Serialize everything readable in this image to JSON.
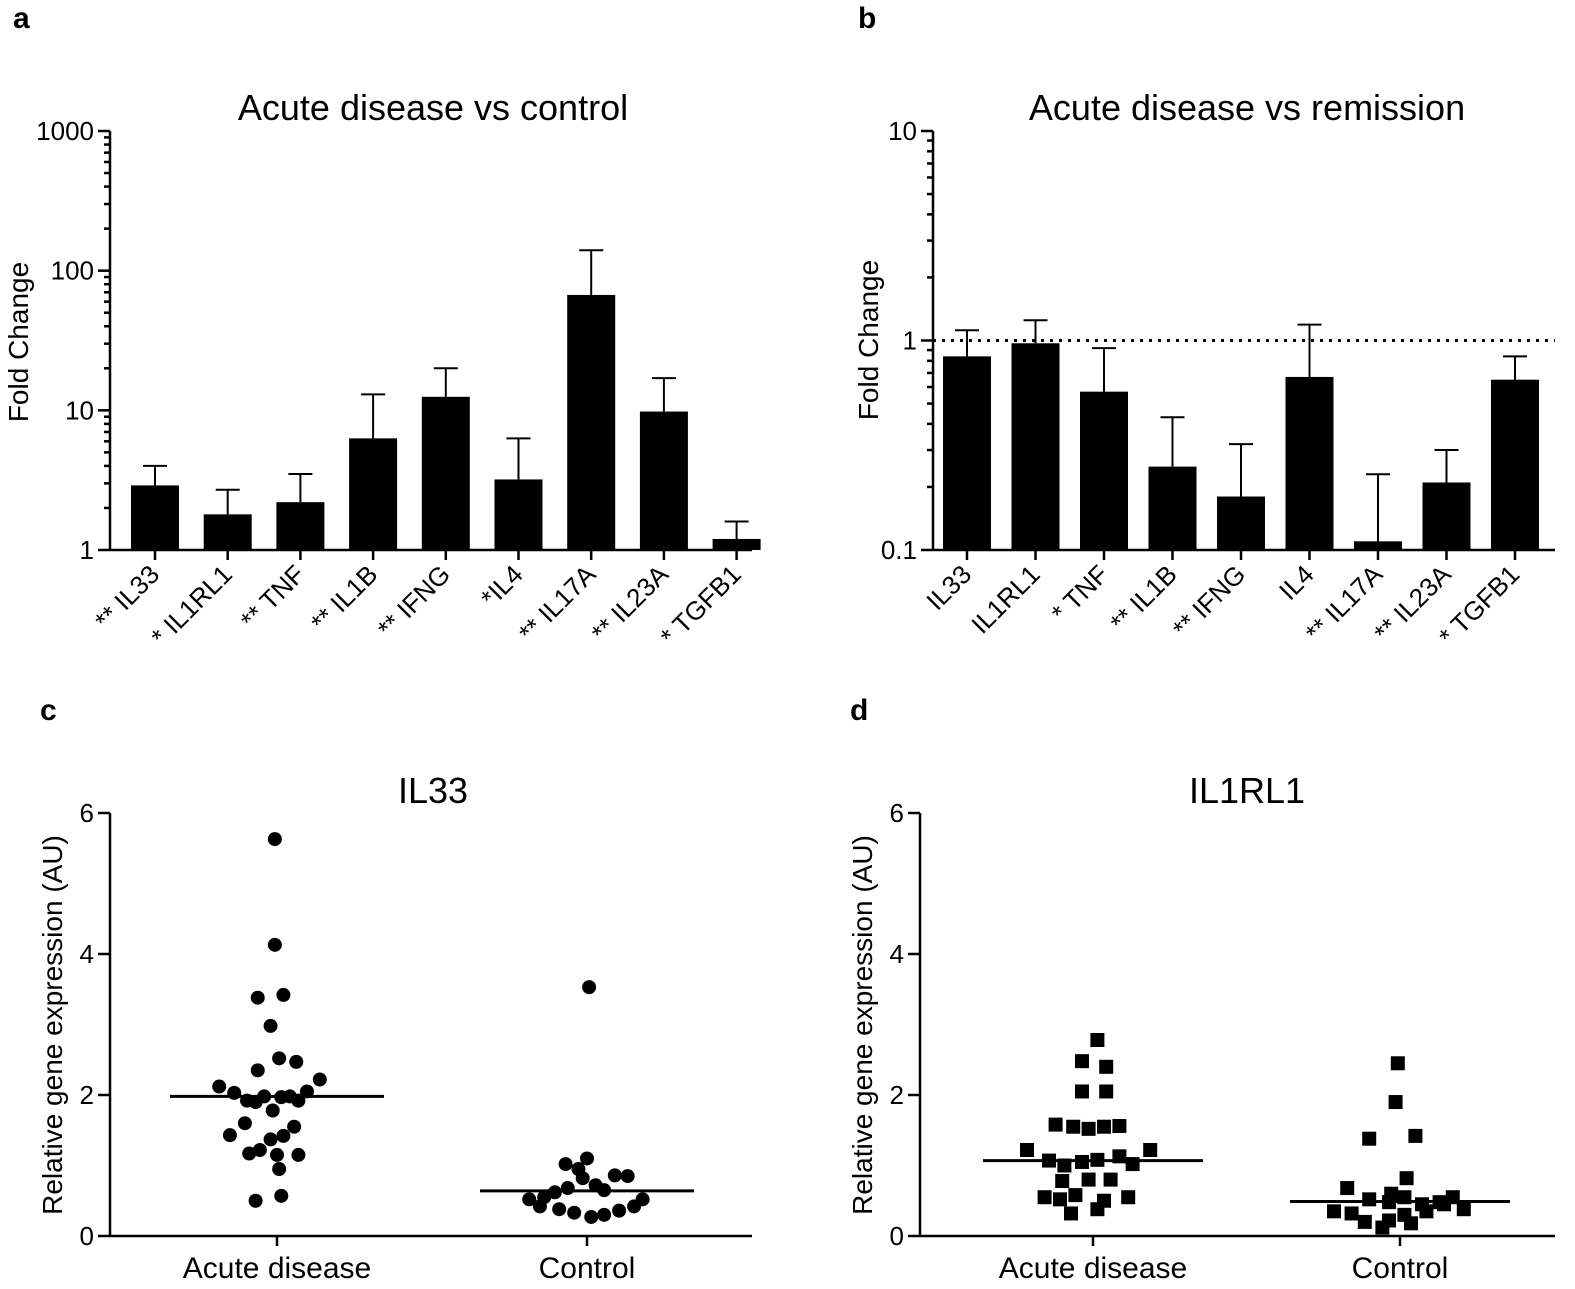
{
  "chart_data": [
    {
      "panel": "a",
      "type": "bar",
      "title": "Acute disease vs control",
      "ylabel": "Fold Change",
      "yscale": "log",
      "ylim": [
        1,
        1000
      ],
      "yticks": [
        1,
        10,
        100,
        1000
      ],
      "ytick_labels": [
        "1",
        "10",
        "100",
        "1000"
      ],
      "categories": [
        "** IL33",
        "* IL1RL1",
        "** TNF",
        "** IL1B",
        "** IFNG",
        "*IL4",
        "** IL17A",
        "** IL23A",
        "* TGFB1"
      ],
      "values": [
        2.9,
        1.8,
        2.2,
        6.3,
        12.5,
        3.2,
        67,
        9.8,
        1.2
      ],
      "error_upper": [
        4.0,
        2.7,
        3.5,
        13,
        20,
        6.3,
        140,
        17,
        1.6
      ],
      "color": "#000000"
    },
    {
      "panel": "b",
      "type": "bar",
      "title": "Acute disease vs remission",
      "ylabel": "Fold Change",
      "yscale": "log",
      "ylim": [
        0.1,
        10
      ],
      "yticks": [
        0.1,
        1,
        10
      ],
      "ytick_labels": [
        "0.1",
        "1",
        "10"
      ],
      "reference_line": 1,
      "categories": [
        "IL33",
        "IL1RL1",
        "* TNF",
        "** IL1B",
        "** IFNG",
        "IL4",
        "** IL17A",
        "** IL23A",
        "* TGFB1"
      ],
      "values": [
        0.84,
        0.97,
        0.57,
        0.25,
        0.18,
        0.67,
        0.11,
        0.21,
        0.65
      ],
      "error_upper": [
        1.12,
        1.25,
        0.92,
        0.43,
        0.32,
        1.19,
        0.23,
        0.3,
        0.84
      ],
      "color": "#000000"
    },
    {
      "panel": "c",
      "type": "scatter",
      "title": "IL33",
      "ylabel": "Relative gene expression (AU)",
      "ylim": [
        0,
        6
      ],
      "yticks": [
        0,
        2,
        4,
        6
      ],
      "ytick_labels": [
        "0",
        "2",
        "4",
        "6"
      ],
      "categories": [
        "Acute disease",
        "Control"
      ],
      "marker": "circle",
      "series": [
        {
          "category": "Acute disease",
          "median": 1.98,
          "points": [
            [
              0.23,
              2.12
            ],
            [
              0.3,
              2.03
            ],
            [
              0.36,
              1.92
            ],
            [
              0.4,
              1.9
            ],
            [
              0.44,
              1.98
            ],
            [
              0.48,
              1.78
            ],
            [
              0.52,
              1.97
            ],
            [
              0.56,
              1.98
            ],
            [
              0.6,
              1.92
            ],
            [
              0.64,
              2.05
            ],
            [
              0.7,
              2.22
            ],
            [
              0.28,
              1.43
            ],
            [
              0.35,
              1.6
            ],
            [
              0.42,
              1.22
            ],
            [
              0.47,
              1.37
            ],
            [
              0.53,
              1.42
            ],
            [
              0.58,
              1.55
            ],
            [
              0.37,
              1.17
            ],
            [
              0.5,
              1.15
            ],
            [
              0.6,
              1.15
            ],
            [
              0.41,
              2.35
            ],
            [
              0.51,
              2.52
            ],
            [
              0.59,
              2.47
            ],
            [
              0.47,
              2.98
            ],
            [
              0.41,
              3.38
            ],
            [
              0.53,
              3.42
            ],
            [
              0.49,
              4.13
            ],
            [
              0.49,
              5.63
            ],
            [
              0.51,
              0.95
            ],
            [
              0.4,
              0.5
            ],
            [
              0.52,
              0.57
            ]
          ]
        },
        {
          "category": "Control",
          "median": 0.64,
          "points": [
            [
              0.51,
              3.53
            ],
            [
              0.5,
              1.1
            ],
            [
              0.4,
              1.02
            ],
            [
              0.46,
              0.95
            ],
            [
              0.63,
              0.86
            ],
            [
              0.69,
              0.85
            ],
            [
              0.48,
              0.82
            ],
            [
              0.54,
              0.72
            ],
            [
              0.58,
              0.65
            ],
            [
              0.41,
              0.68
            ],
            [
              0.35,
              0.62
            ],
            [
              0.3,
              0.55
            ],
            [
              0.23,
              0.52
            ],
            [
              0.28,
              0.42
            ],
            [
              0.37,
              0.38
            ],
            [
              0.44,
              0.33
            ],
            [
              0.52,
              0.27
            ],
            [
              0.58,
              0.3
            ],
            [
              0.65,
              0.36
            ],
            [
              0.72,
              0.42
            ],
            [
              0.76,
              0.52
            ]
          ]
        }
      ]
    },
    {
      "panel": "d",
      "type": "scatter",
      "title": "IL1RL1",
      "ylabel": "Relative gene expression (AU)",
      "ylim": [
        0,
        6
      ],
      "yticks": [
        0,
        2,
        4,
        6
      ],
      "ytick_labels": [
        "0",
        "2",
        "4",
        "6"
      ],
      "categories": [
        "Acute disease",
        "Control"
      ],
      "marker": "square",
      "series": [
        {
          "category": "Acute disease",
          "median": 1.07,
          "points": [
            [
              0.52,
              2.78
            ],
            [
              0.45,
              2.48
            ],
            [
              0.56,
              2.4
            ],
            [
              0.45,
              2.05
            ],
            [
              0.56,
              2.05
            ],
            [
              0.33,
              1.58
            ],
            [
              0.41,
              1.55
            ],
            [
              0.48,
              1.52
            ],
            [
              0.62,
              1.56
            ],
            [
              0.55,
              1.55
            ],
            [
              0.2,
              1.22
            ],
            [
              0.3,
              1.07
            ],
            [
              0.37,
              1.0
            ],
            [
              0.45,
              1.05
            ],
            [
              0.52,
              1.08
            ],
            [
              0.62,
              1.13
            ],
            [
              0.68,
              1.02
            ],
            [
              0.76,
              1.22
            ],
            [
              0.36,
              0.78
            ],
            [
              0.48,
              0.8
            ],
            [
              0.58,
              0.8
            ],
            [
              0.28,
              0.55
            ],
            [
              0.35,
              0.52
            ],
            [
              0.42,
              0.58
            ],
            [
              0.55,
              0.5
            ],
            [
              0.66,
              0.55
            ],
            [
              0.4,
              0.32
            ],
            [
              0.52,
              0.38
            ]
          ]
        },
        {
          "category": "Control",
          "median": 0.49,
          "points": [
            [
              0.49,
              2.45
            ],
            [
              0.48,
              1.9
            ],
            [
              0.36,
              1.38
            ],
            [
              0.57,
              1.42
            ],
            [
              0.53,
              0.82
            ],
            [
              0.46,
              0.6
            ],
            [
              0.26,
              0.68
            ],
            [
              0.2,
              0.35
            ],
            [
              0.36,
              0.52
            ],
            [
              0.45,
              0.48
            ],
            [
              0.52,
              0.55
            ],
            [
              0.6,
              0.45
            ],
            [
              0.68,
              0.48
            ],
            [
              0.74,
              0.55
            ],
            [
              0.79,
              0.38
            ],
            [
              0.28,
              0.32
            ],
            [
              0.34,
              0.2
            ],
            [
              0.45,
              0.22
            ],
            [
              0.52,
              0.3
            ],
            [
              0.62,
              0.35
            ],
            [
              0.7,
              0.45
            ],
            [
              0.42,
              0.12
            ],
            [
              0.55,
              0.18
            ]
          ]
        }
      ]
    }
  ]
}
